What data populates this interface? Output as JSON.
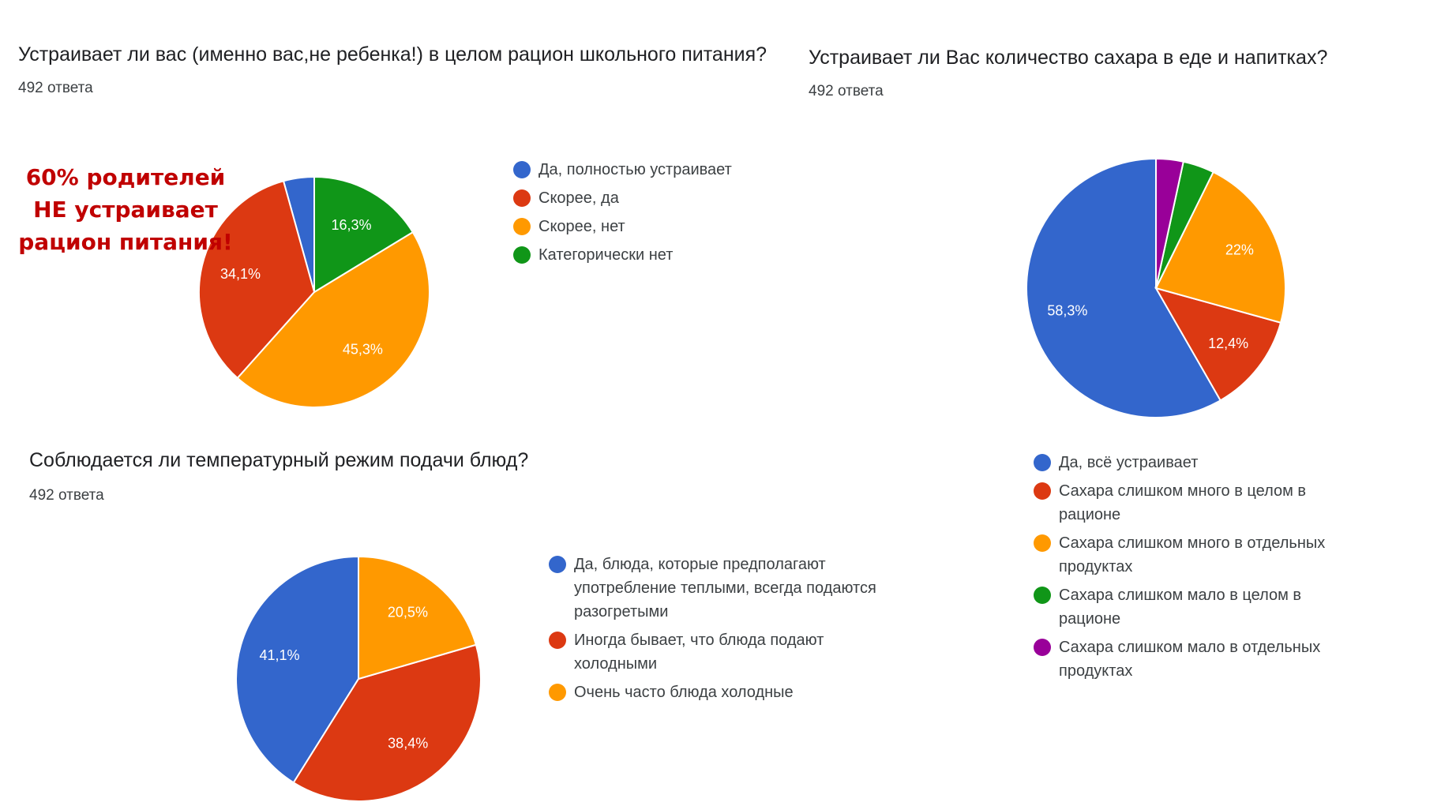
{
  "colors": {
    "blue": "#3366cc",
    "red": "#dc3912",
    "orange": "#ff9900",
    "green": "#109618",
    "purple": "#990099"
  },
  "callout": {
    "line1": "60% родителей",
    "line2": "НЕ устраивает",
    "line3": "рацион питания!",
    "color": "#c00000"
  },
  "chart_data": [
    {
      "type": "pie",
      "title": "Устраивает ли вас (именно вас,не ребенка!) в целом рацион школьного питания?",
      "responses": "492 ответа",
      "start_angle_deg": 90,
      "slices": [
        {
          "label": "Да, полностью устраивает",
          "value": 4.3,
          "color": "#3366cc",
          "value_label": ""
        },
        {
          "label": "Скорее, да",
          "value": 34.1,
          "color": "#dc3912",
          "value_label": "34,1%"
        },
        {
          "label": "Скорее, нет",
          "value": 45.3,
          "color": "#ff9900",
          "value_label": "45,3%"
        },
        {
          "label": "Категорически нет",
          "value": 16.3,
          "color": "#109618",
          "value_label": "16,3%"
        }
      ]
    },
    {
      "type": "pie",
      "title": "Устраивает ли Вас количество сахара в еде и напитках?",
      "responses": "492 ответа",
      "start_angle_deg": 90,
      "slices": [
        {
          "label": "Да, всё устраивает",
          "value": 58.3,
          "color": "#3366cc",
          "value_label": "58,3%"
        },
        {
          "label": "Сахара слишком много в целом в рационе",
          "value": 12.4,
          "color": "#dc3912",
          "value_label": "12,4%"
        },
        {
          "label": "Сахара слишком много в отдельных продуктах",
          "value": 22,
          "color": "#ff9900",
          "value_label": "22%"
        },
        {
          "label": "Сахара слишком мало в целом в рационе",
          "value": 3.9,
          "color": "#109618",
          "value_label": ""
        },
        {
          "label": "Сахара слишком мало в отдельных продуктах",
          "value": 3.4,
          "color": "#990099",
          "value_label": ""
        }
      ]
    },
    {
      "type": "pie",
      "title": "Соблюдается ли температурный режим подачи блюд?",
      "responses": "492 ответа",
      "start_angle_deg": 90,
      "slices": [
        {
          "label": "Да, блюда, которые предполагают употребление теплыми, всегда подаются разогретыми",
          "value": 41.1,
          "color": "#3366cc",
          "value_label": "41,1%"
        },
        {
          "label": "Иногда бывает, что блюда подают холодными",
          "value": 38.4,
          "color": "#dc3912",
          "value_label": "38,4%"
        },
        {
          "label": "Очень часто блюда холодные",
          "value": 20.5,
          "color": "#ff9900",
          "value_label": "20,5%"
        }
      ]
    }
  ]
}
